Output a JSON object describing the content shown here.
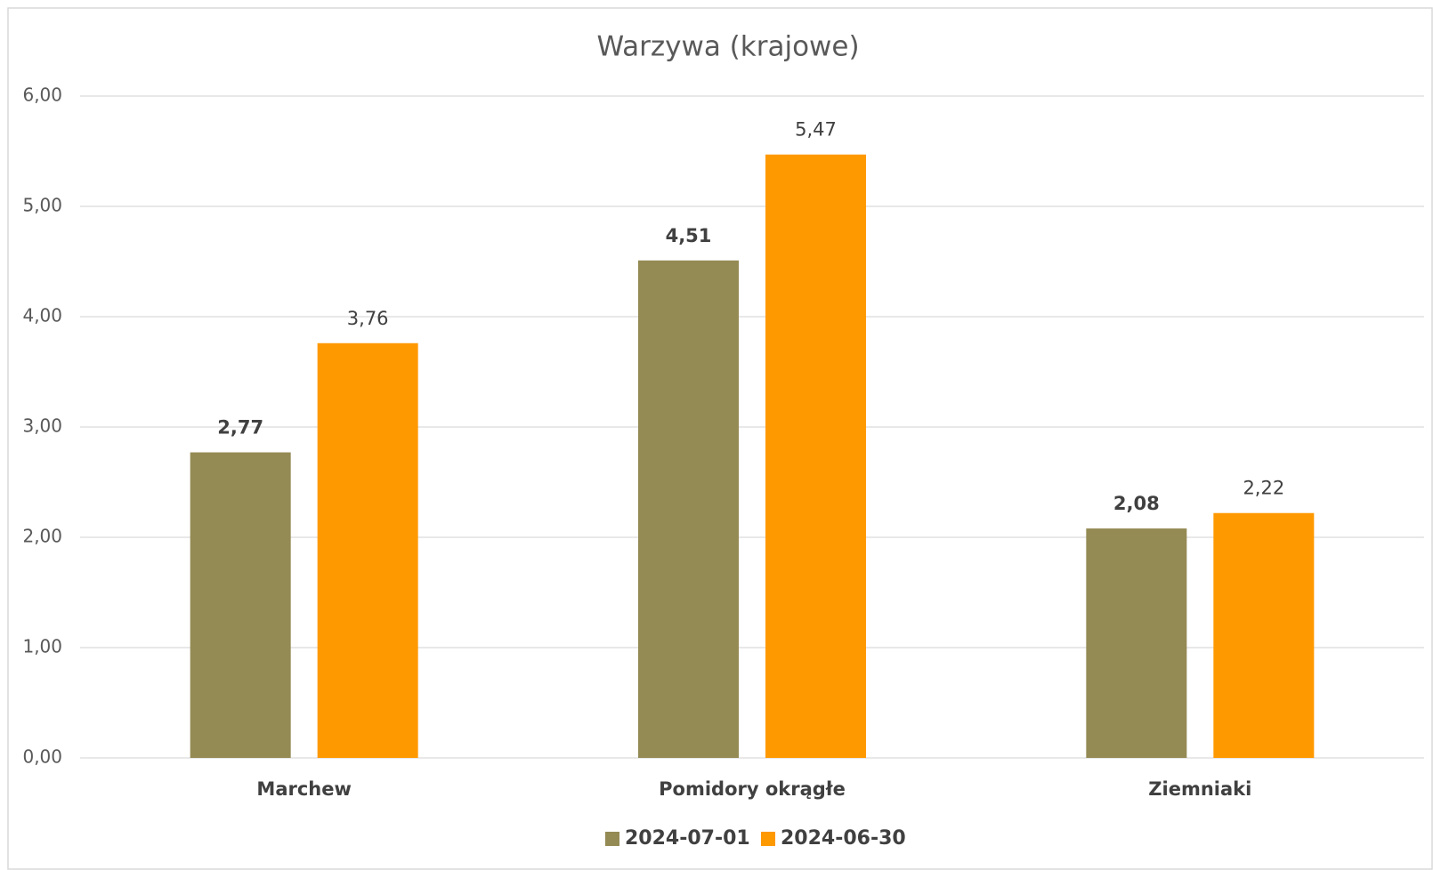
{
  "chart_data": {
    "type": "bar",
    "title": "Warzywa (krajowe)",
    "categories": [
      "Marchew",
      "Pomidory okrągłe",
      "Ziemniaki"
    ],
    "series": [
      {
        "name": "2024-07-01",
        "color": "#948a54",
        "values": [
          2.77,
          4.51,
          2.08
        ],
        "value_labels": [
          "2,77",
          "4,51",
          "2,08"
        ]
      },
      {
        "name": "2024-06-30",
        "color": "#ff9900",
        "values": [
          3.76,
          5.47,
          2.22
        ],
        "value_labels": [
          "3,76",
          "5,47",
          "2,22"
        ]
      }
    ],
    "ylim": [
      0,
      6
    ],
    "yticks": [
      {
        "value": 0,
        "label": "0,00"
      },
      {
        "value": 1,
        "label": "1,00"
      },
      {
        "value": 2,
        "label": "2,00"
      },
      {
        "value": 3,
        "label": "3,00"
      },
      {
        "value": 4,
        "label": "4,00"
      },
      {
        "value": 5,
        "label": "5,00"
      },
      {
        "value": 6,
        "label": "6,00"
      }
    ],
    "grid": true,
    "legend": "bottom"
  }
}
